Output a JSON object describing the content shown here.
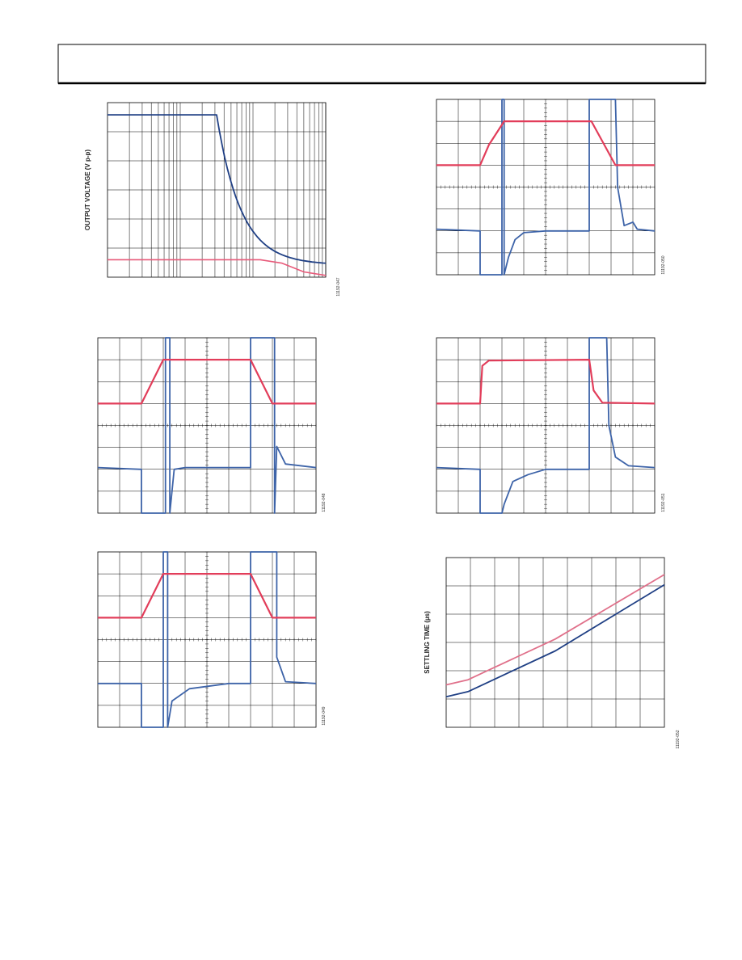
{
  "figures": [
    {
      "y_axis_label": "OUTPUT VOLTAGE (V p-p)",
      "figure_id": "11192-047"
    },
    {
      "figure_id": "11192-050"
    },
    {
      "figure_id": "11192-048"
    },
    {
      "figure_id": "11192-051"
    },
    {
      "figure_id": "11192-049"
    },
    {
      "y_axis_label": "SETTLING TIME (µs)",
      "figure_id": "11192-052"
    }
  ]
}
